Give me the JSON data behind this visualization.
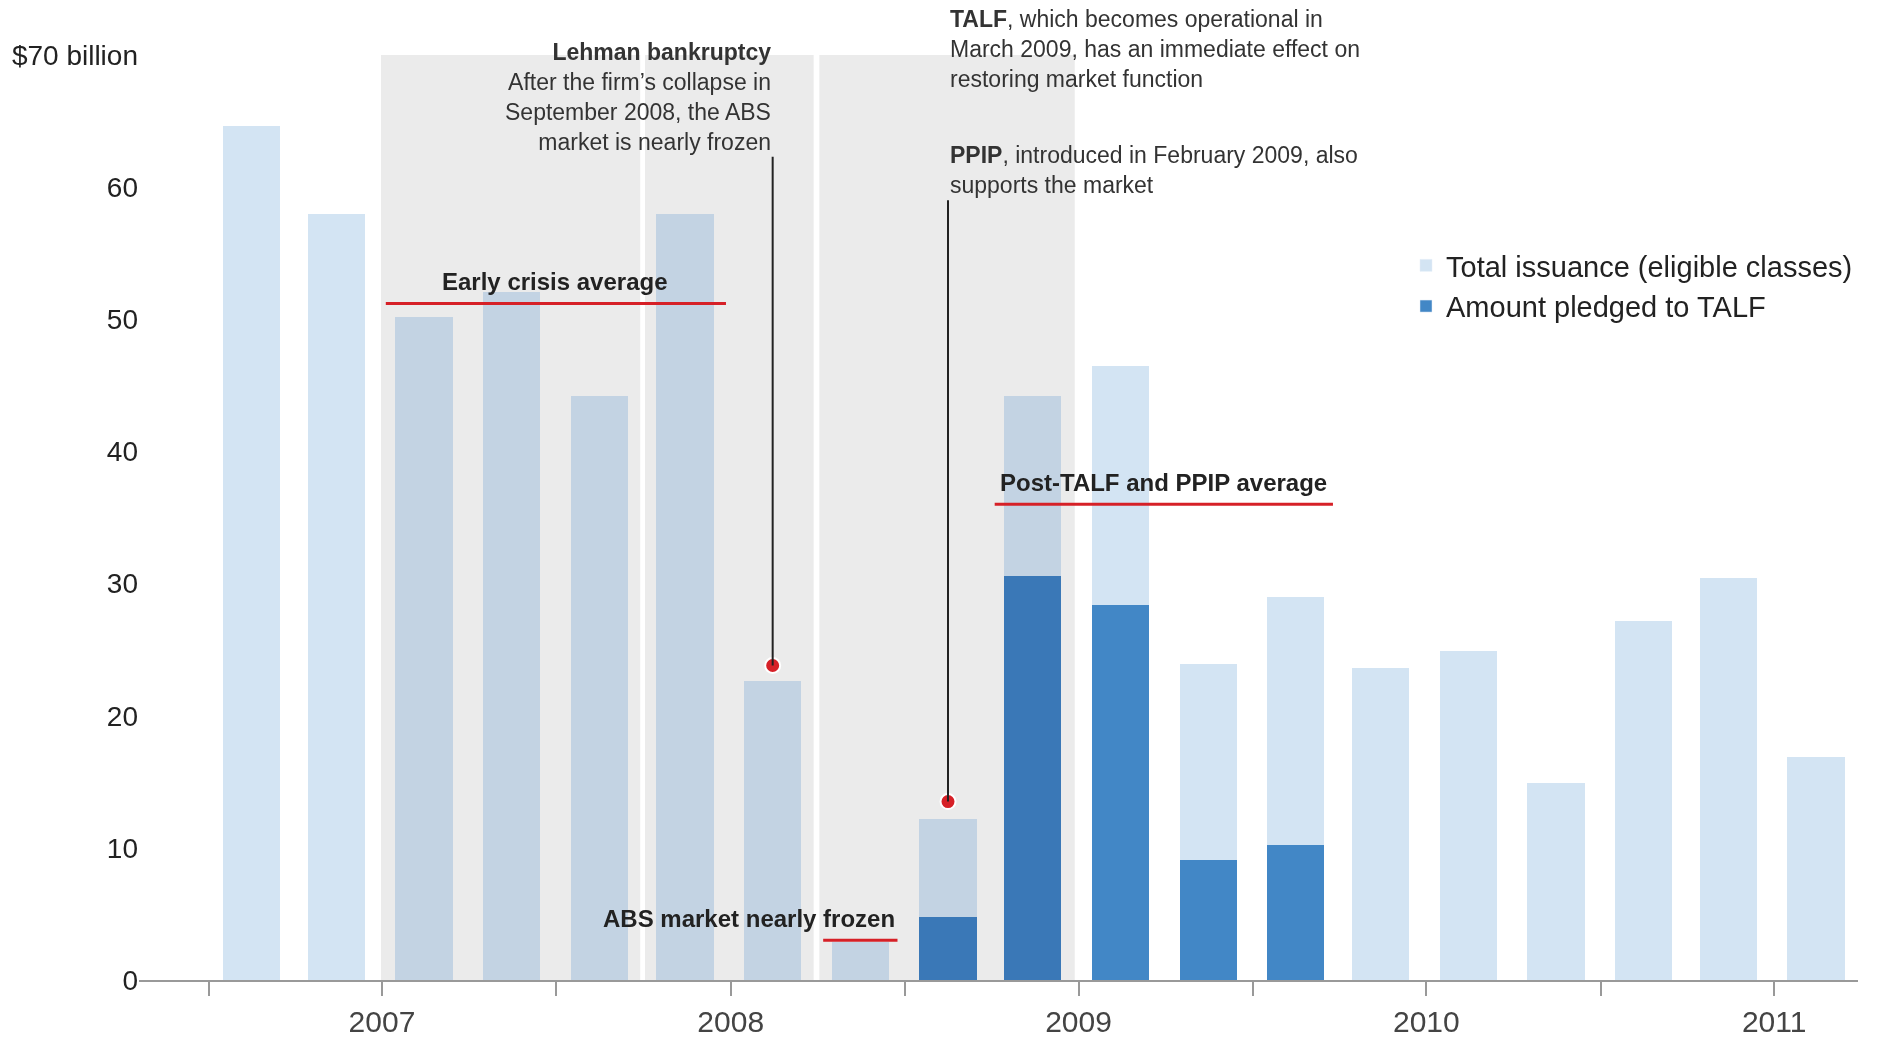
{
  "chart_data": {
    "type": "bar",
    "stacked": true,
    "x": [
      "2007-02-15",
      "2007-05-15",
      "2007-08-15",
      "2007-11-15",
      "2008-02-15",
      "2008-05-15",
      "2008-08-15",
      "2008-11-15",
      "2009-02-15",
      "2009-05-15",
      "2009-08-15",
      "2009-11-15",
      "2010-02-15",
      "2010-05-15",
      "2010-08-15",
      "2010-11-15",
      "2011-02-15",
      "2011-05-15",
      "2011-08-15"
    ],
    "series": [
      {
        "name": "Amount pledged to TALF",
        "color": "#4287c6",
        "colors": [
          "#4287c6",
          "#4287c6",
          "#4287c6",
          "#4287c6",
          "#4287c6",
          "#4287c6",
          "#4287c6",
          "#4287c6",
          "#3a78b7",
          "#3a78b7",
          "#4287c6",
          "#4287c6",
          "#4287c6",
          "#4287c6",
          "#4287c6",
          "#4287c6",
          "#4287c6",
          "#4287c6",
          "#4287c6"
        ],
        "values": [
          null,
          null,
          null,
          null,
          null,
          null,
          null,
          null,
          4.8,
          30.6,
          28.4,
          9.1,
          10.2,
          null,
          null,
          null,
          null,
          null,
          null
        ]
      },
      {
        "name": "Total issuance (eligible classes)",
        "color": "#d3e4f3",
        "colors": [
          "#d3e4f3",
          "#d3e4f3",
          "#c3d3e3",
          "#c3d3e3",
          "#c3d3e3",
          "#c3d3e3",
          "#c3d3e3",
          "#c3d3e3",
          "#c3d3e3",
          "#c3d3e3",
          "#d3e4f3",
          "#d3e4f3",
          "#d3e4f3",
          "#d3e4f3",
          "#d3e4f3",
          "#d3e4f3",
          "#d3e4f3",
          "#d3e4f3",
          "#d3e4f3"
        ],
        "values": [
          64.6,
          58.0,
          50.2,
          52.1,
          44.2,
          58.0,
          22.6,
          2.9,
          7.4,
          13.6,
          18.1,
          14.8,
          18.8,
          23.6,
          24.9,
          14.9,
          27.2,
          30.4,
          16.9
        ]
      },
      {
        "name": "Early crisis average",
        "type": "line",
        "color": "#d62027",
        "x": [
          "2007-07-06",
          "2008-06-27"
        ],
        "values": [
          51.2,
          51.2
        ]
      },
      {
        "name": "ABS market nearly frozen",
        "type": "line",
        "color": "#d62027",
        "x": [
          "2008-10-07",
          "2008-12-24"
        ],
        "values": [
          3.0,
          3.0
        ]
      },
      {
        "name": "Post-TALF and PPIP average",
        "type": "line",
        "color": "#d62027",
        "x": [
          "2009-04-05",
          "2010-03-26"
        ],
        "values": [
          36.0,
          36.0
        ]
      }
    ],
    "bands": [
      {
        "axis": "x",
        "from": "2007-07-01",
        "to": "2008-03-29",
        "color": "#ebebeb"
      },
      {
        "axis": "x",
        "from": "2008-04-03",
        "to": "2008-09-27",
        "color": "#ebebeb"
      },
      {
        "axis": "x",
        "from": "2008-10-03",
        "to": "2009-06-28",
        "color": "#ebebeb"
      }
    ],
    "annotations": [
      {
        "text": "Lehman bankruptcy\nAfter the firm’s collapse in\nSeptember 2008, the ABS\nmarket is nearly frozen",
        "x": "2008-08-15",
        "y": 23.8
      },
      "TALF, which becomes operational in\nMarch 2009, has an immediate effect on\nrestoring market function",
      {
        "text": "PPIP, introduced in February 2009, also\nsupports the market",
        "x": "2009-02-15",
        "y": 13.5
      }
    ],
    "xlim": [
      "2006-10-20",
      "2011-09-28"
    ],
    "xticks": [
      {
        "value": "2007-01-01",
        "label": null
      },
      {
        "value": "2008-01-01",
        "label": null
      },
      {
        "value": "2009-01-01",
        "label": null
      },
      {
        "value": "2010-01-01",
        "label": null
      },
      {
        "value": "2011-01-01",
        "label": null
      },
      {
        "value": "2007-07-02",
        "label": "2007"
      },
      {
        "value": "2008-07-02",
        "label": "2008"
      },
      {
        "value": "2009-07-02",
        "label": "2009"
      },
      {
        "value": "2010-07-02",
        "label": "2010"
      },
      {
        "value": "2011-07-02",
        "label": "2011"
      }
    ],
    "ylim": [
      0,
      70
    ],
    "yticks": [
      0,
      10,
      20,
      30,
      40,
      50,
      60,
      {
        "value": 70,
        "label": "$70 billion"
      }
    ],
    "legend": "top right",
    "grid": false
  }
}
